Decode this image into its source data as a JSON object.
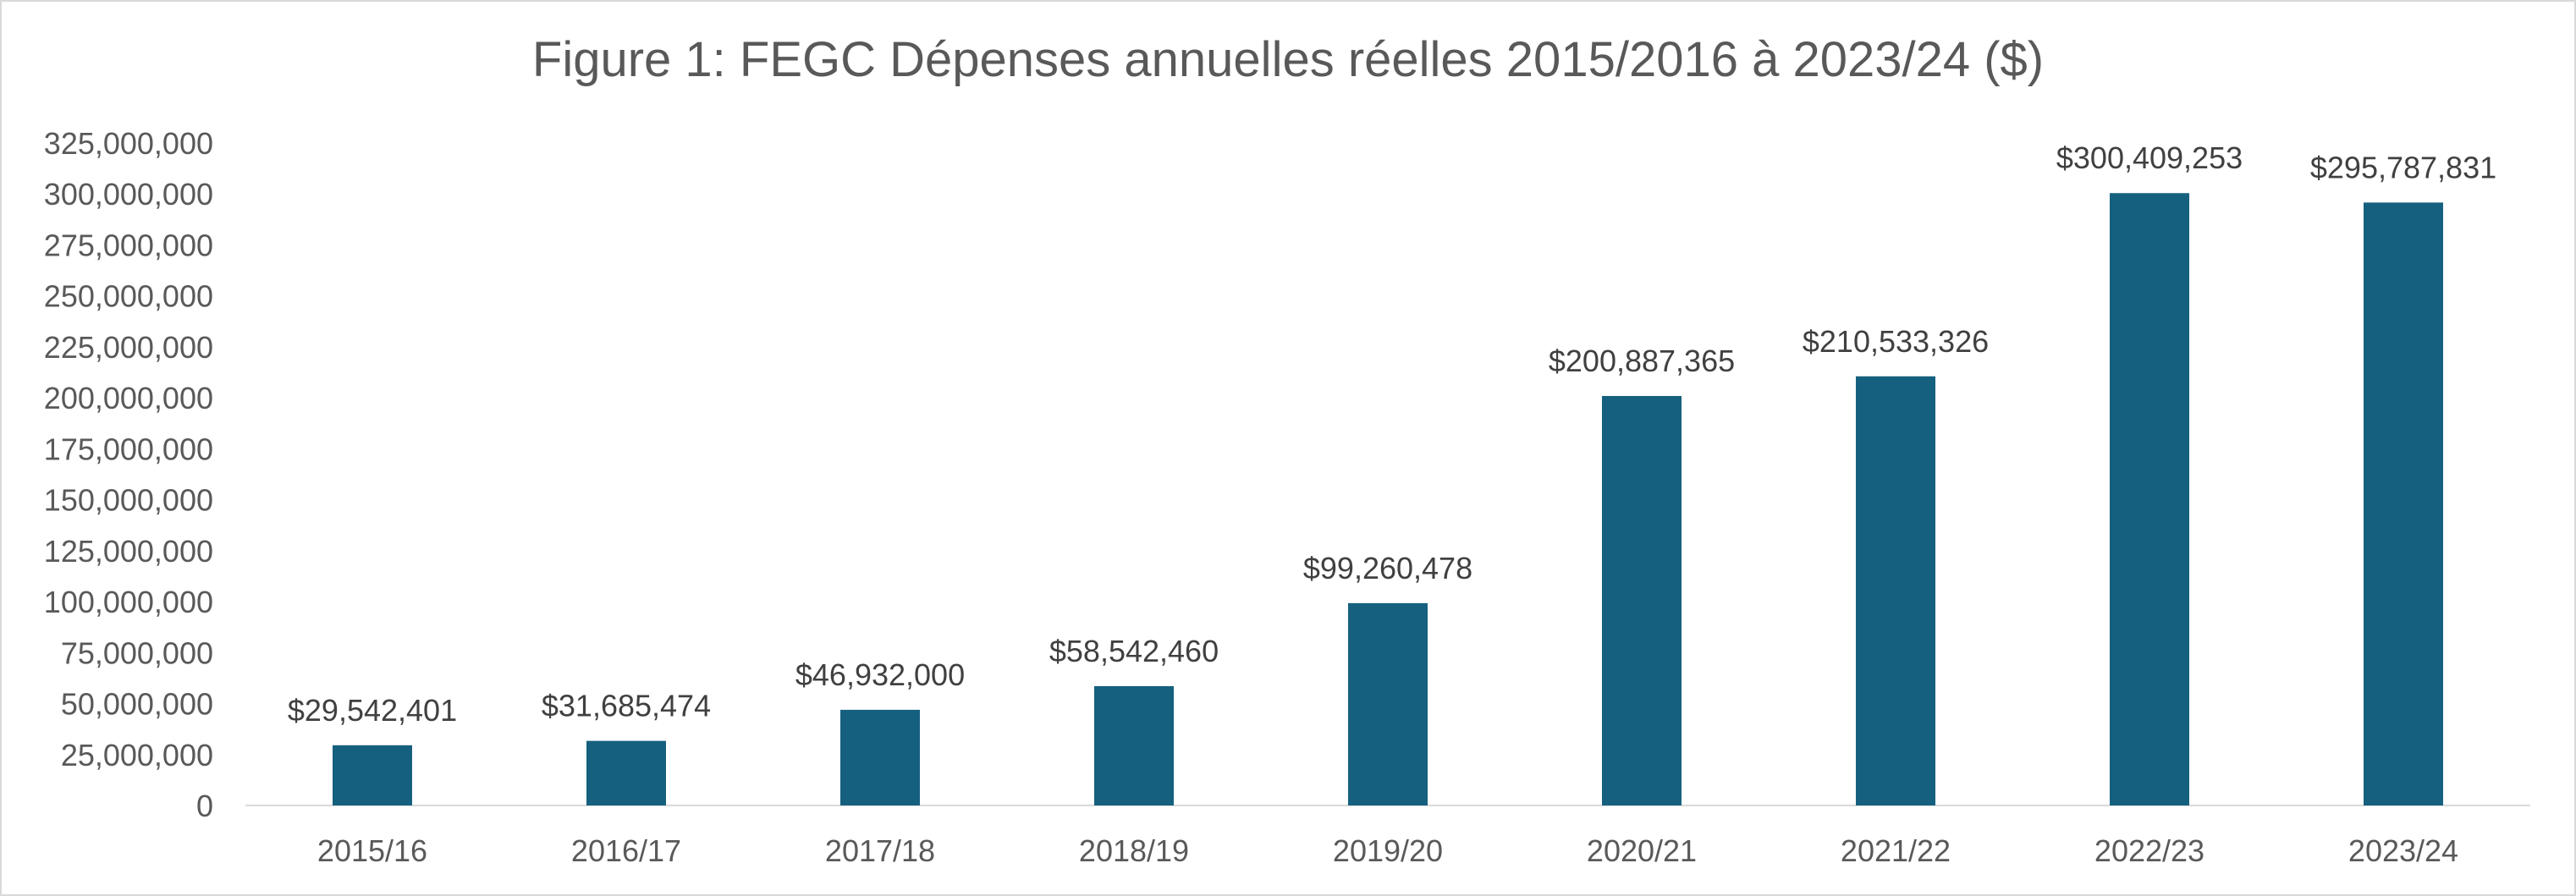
{
  "chart_data": {
    "type": "bar",
    "title": "Figure 1: FEGC Dépenses annuelles réelles 2015/2016 à 2023/24 ($)",
    "xlabel": "",
    "ylabel": "",
    "categories": [
      "2015/16",
      "2016/17",
      "2017/18",
      "2018/19",
      "2019/20",
      "2020/21",
      "2021/22",
      "2022/23",
      "2023/24"
    ],
    "values": [
      29542401,
      31685474,
      46932000,
      58542460,
      99260478,
      200887365,
      210533326,
      300409253,
      295787831
    ],
    "data_labels": [
      "$29,542,401",
      "$31,685,474",
      "$46,932,000",
      "$58,542,460",
      "$99,260,478",
      "$200,887,365",
      "$210,533,326",
      "$300,409,253",
      "$295,787,831"
    ],
    "ylim": [
      0,
      325000000
    ],
    "y_ticks": [
      0,
      25000000,
      50000000,
      75000000,
      100000000,
      125000000,
      150000000,
      175000000,
      200000000,
      225000000,
      250000000,
      275000000,
      300000000,
      325000000
    ],
    "y_tick_labels": [
      "0",
      "25,000,000",
      "50,000,000",
      "75,000,000",
      "100,000,000",
      "125,000,000",
      "150,000,000",
      "175,000,000",
      "200,000,000",
      "225,000,000",
      "250,000,000",
      "275,000,000",
      "300,000,000",
      "325,000,000"
    ],
    "grid": false,
    "legend": "none",
    "bar_color": "#16607f",
    "axis_color": "#d9d9d9"
  }
}
